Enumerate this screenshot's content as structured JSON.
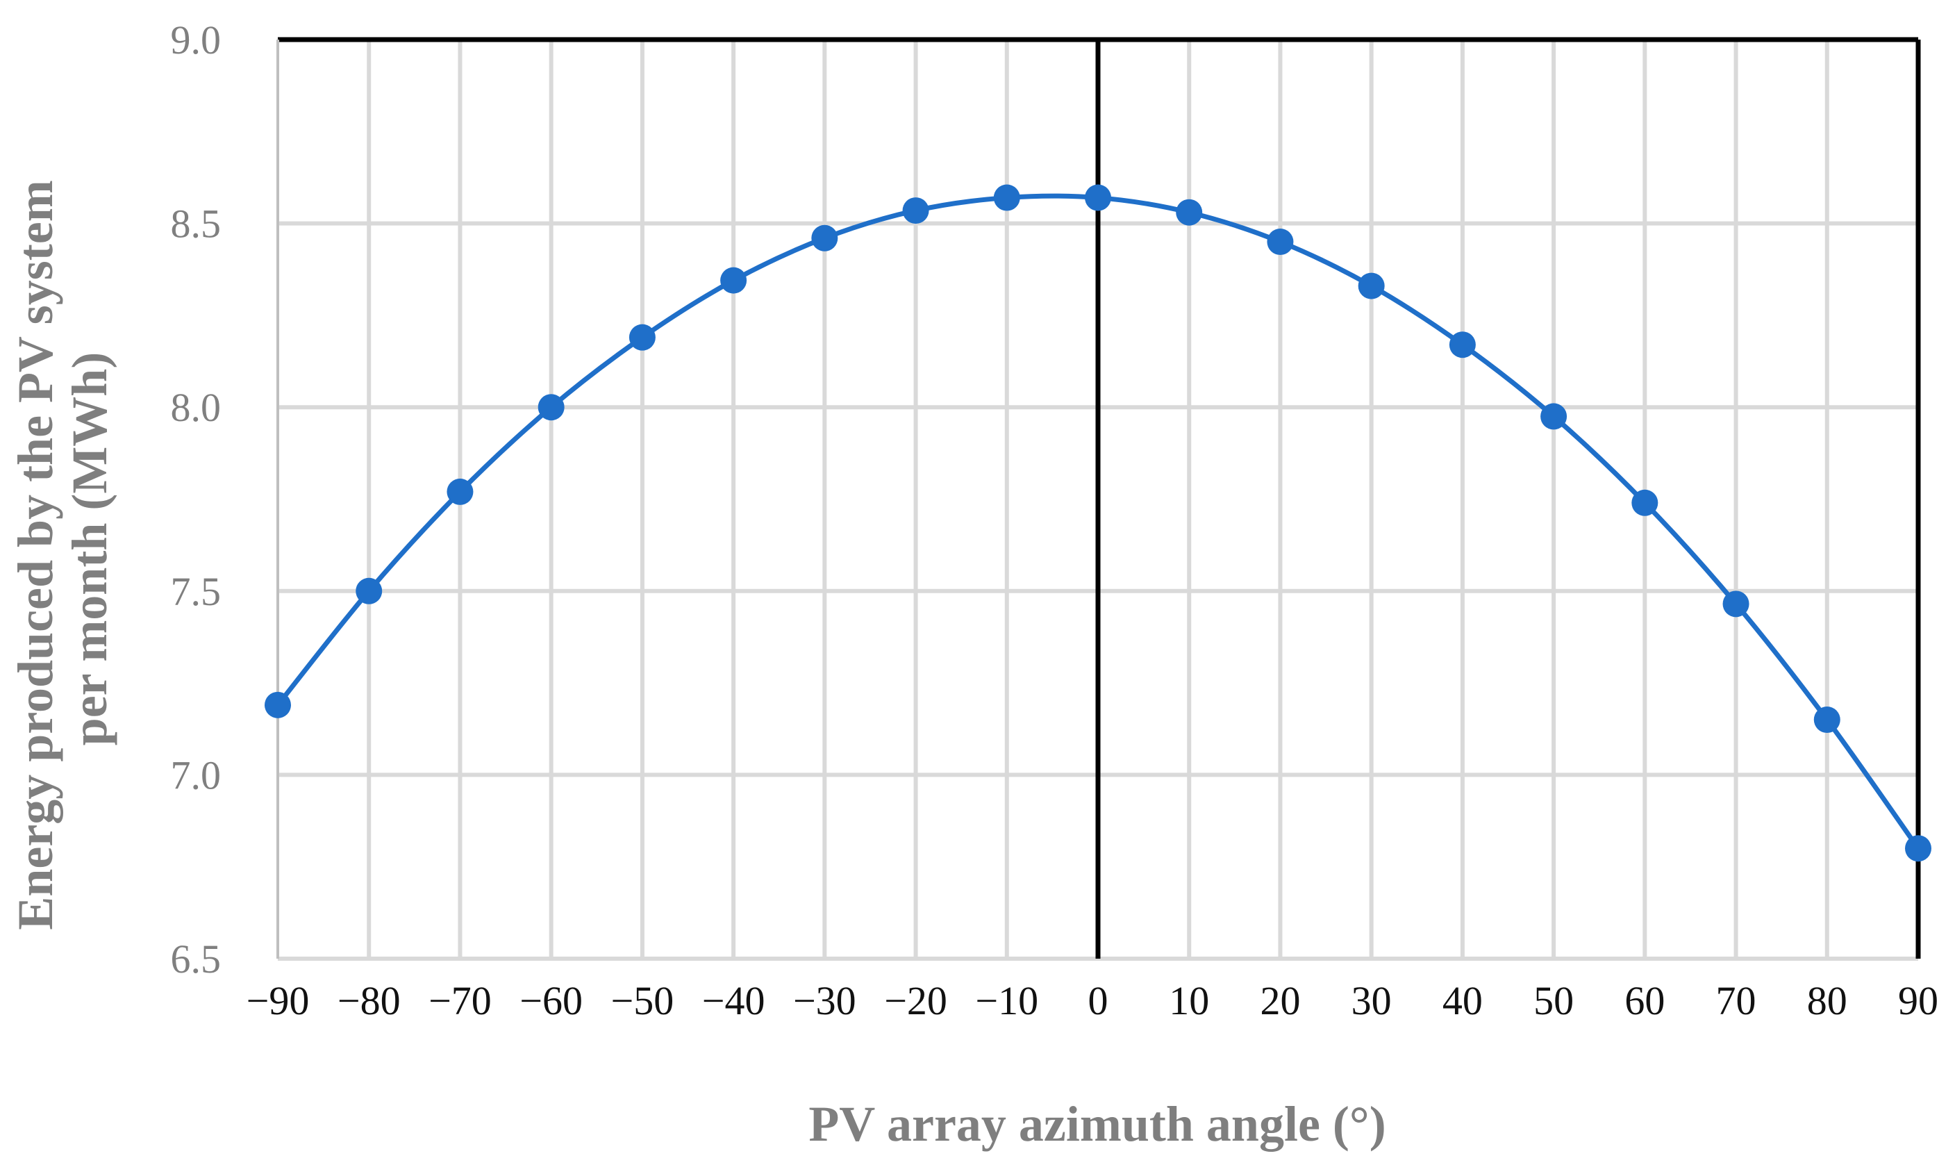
{
  "chart_data": {
    "type": "line",
    "title": "",
    "xlabel": "PV array azimuth angle (°)",
    "ylabel_lines": [
      "Energy produced by the PV system",
      "per month (MWh)"
    ],
    "x": [
      -90,
      -80,
      -70,
      -60,
      -50,
      -40,
      -30,
      -20,
      -10,
      0,
      10,
      20,
      30,
      40,
      50,
      60,
      70,
      80,
      90
    ],
    "x_tick_labels": [
      "−90",
      "−80",
      "−70",
      "−60",
      "−50",
      "−40",
      "−30",
      "−20",
      "−10",
      "0",
      "10",
      "20",
      "30",
      "40",
      "50",
      "60",
      "70",
      "80",
      "90"
    ],
    "xlim": [
      -90,
      90
    ],
    "ylim": [
      6.5,
      9.0
    ],
    "y_ticks": [
      6.5,
      7.0,
      7.5,
      8.0,
      8.5,
      9.0
    ],
    "y_tick_labels": [
      "6.5",
      "7.0",
      "7.5",
      "8.0",
      "8.5",
      "9.0"
    ],
    "grid": true,
    "series": [
      {
        "name": "Energy",
        "values": [
          7.19,
          7.5,
          7.77,
          8.0,
          8.19,
          8.345,
          8.46,
          8.535,
          8.57,
          8.57,
          8.53,
          8.45,
          8.33,
          8.17,
          7.975,
          7.74,
          7.465,
          7.15,
          6.8
        ],
        "color": "#1f6fc9"
      }
    ],
    "colors": {
      "grid": "#d9d9d9",
      "axis": "#000000",
      "label": "#7f7f7f",
      "series": "#1f6fc9"
    }
  }
}
